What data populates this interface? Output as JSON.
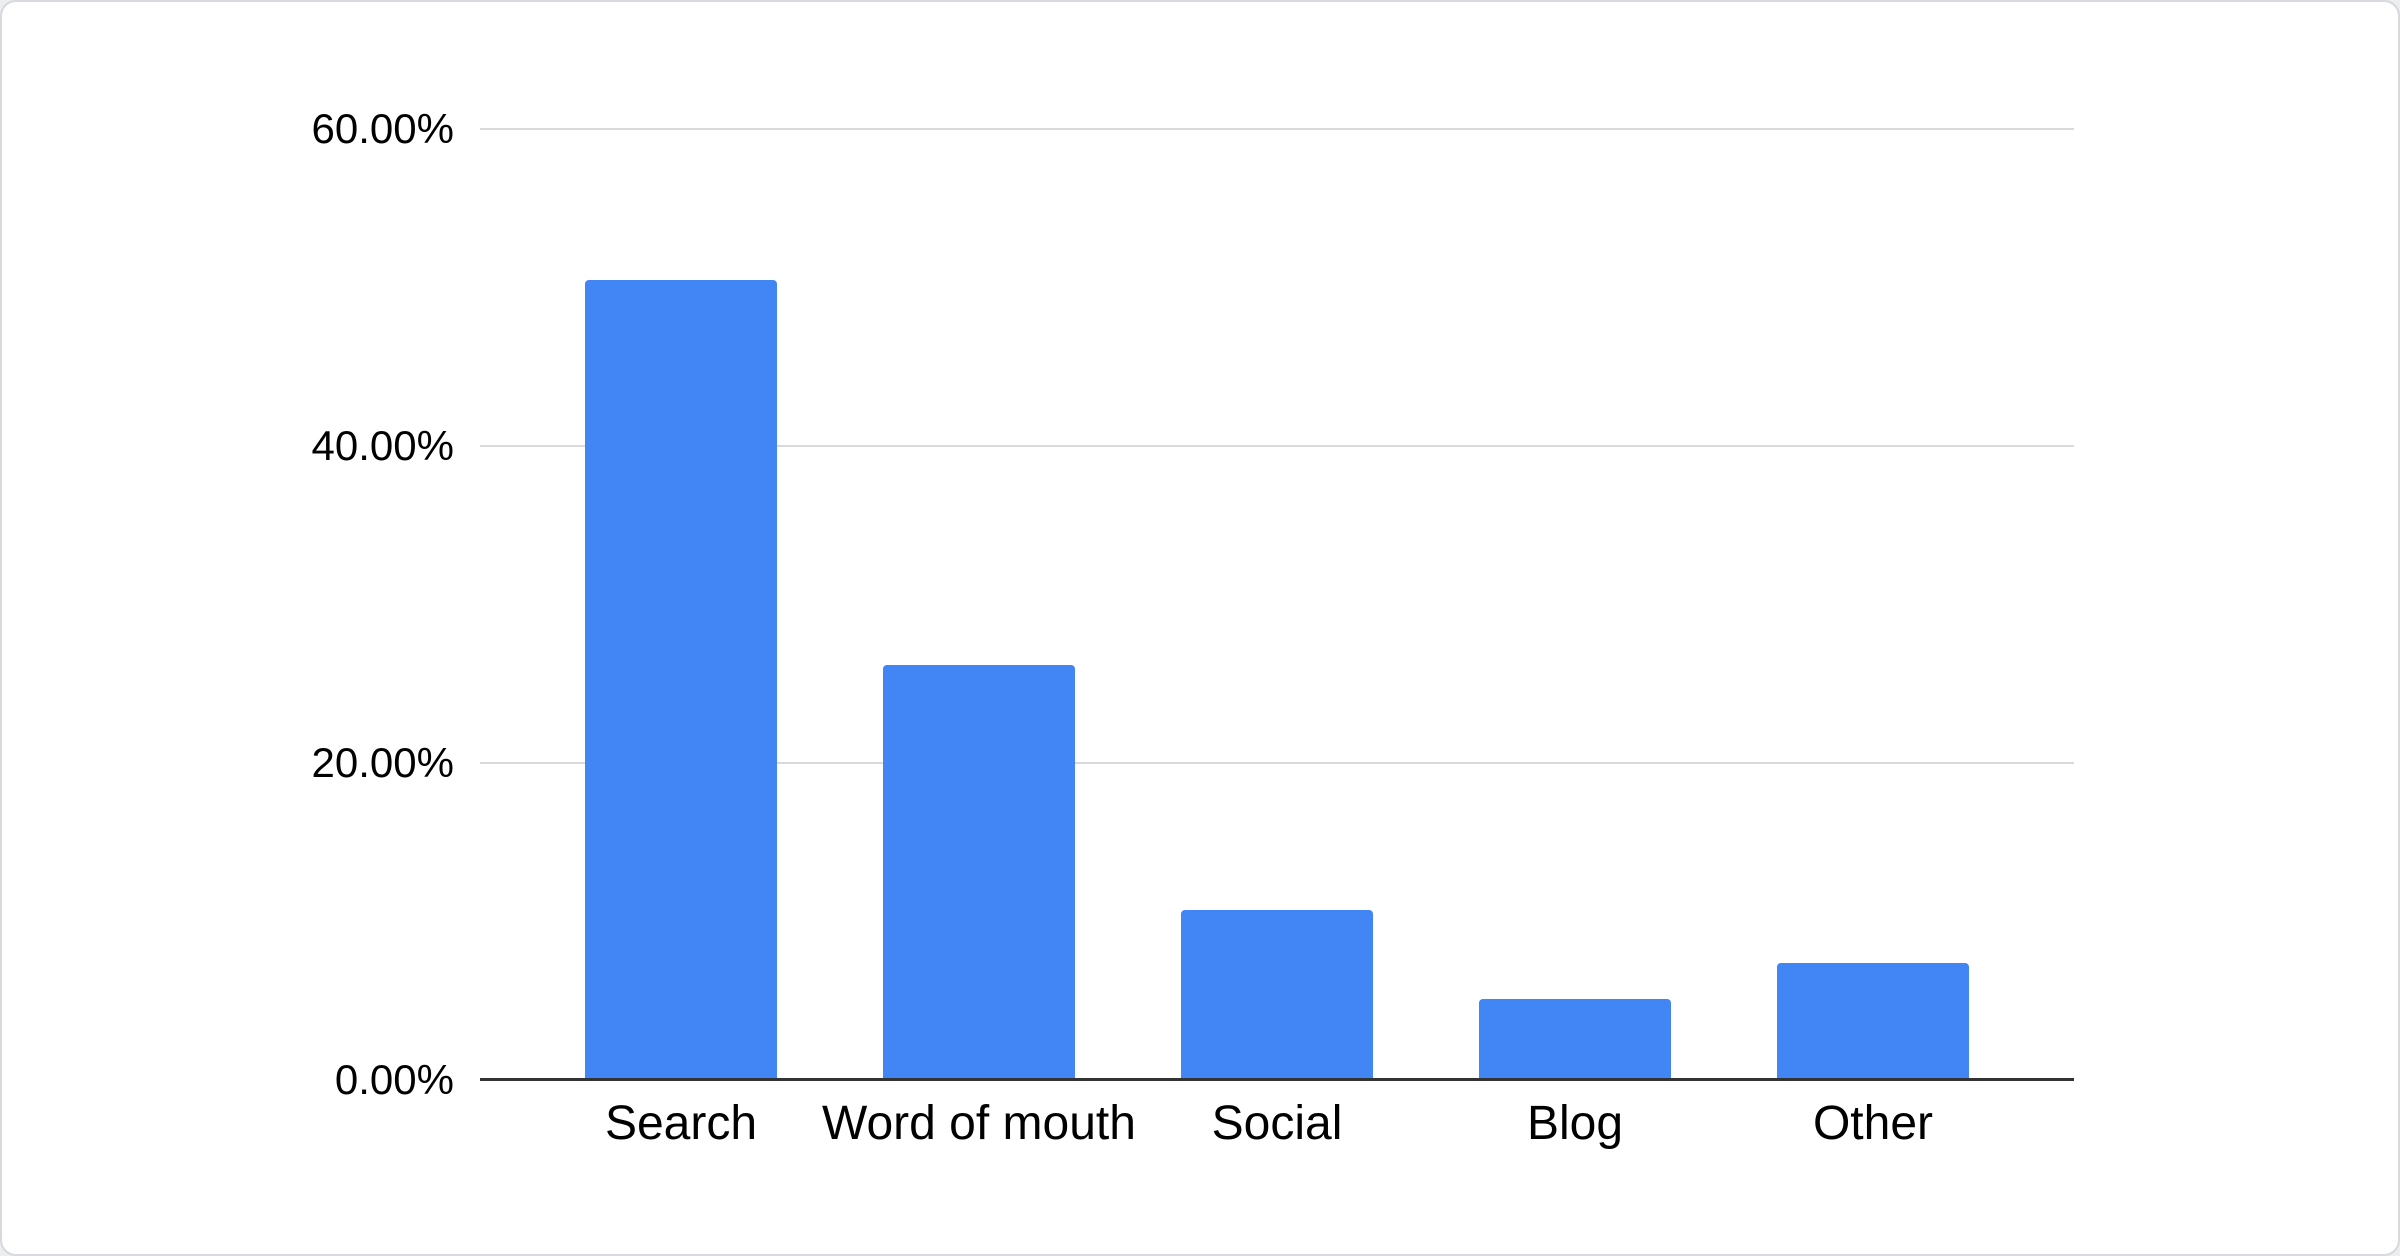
{
  "chart_data": {
    "type": "bar",
    "categories": [
      "Search",
      "Word of mouth",
      "Social",
      "Blog",
      "Other"
    ],
    "values": [
      50.5,
      26.2,
      10.7,
      5.1,
      7.4
    ],
    "series_name": "",
    "title": "",
    "xlabel": "",
    "ylabel": "",
    "ylim": [
      0,
      60
    ],
    "yticks": [
      {
        "label": "60.00%",
        "value": 60
      },
      {
        "label": "40.00%",
        "value": 40
      },
      {
        "label": "20.00%",
        "value": 20
      },
      {
        "label": "0.00%",
        "value": 0
      }
    ],
    "grid": true,
    "legend_position": "none",
    "bar_color": "#4285f4"
  },
  "colors": {
    "bar": "#4285f4",
    "gridline": "#d9d9d9",
    "axis_line": "#333333",
    "label_text": "#000000",
    "card_background": "#ffffff",
    "card_border": "#d6d9dd",
    "page_background": "#eceef0"
  }
}
